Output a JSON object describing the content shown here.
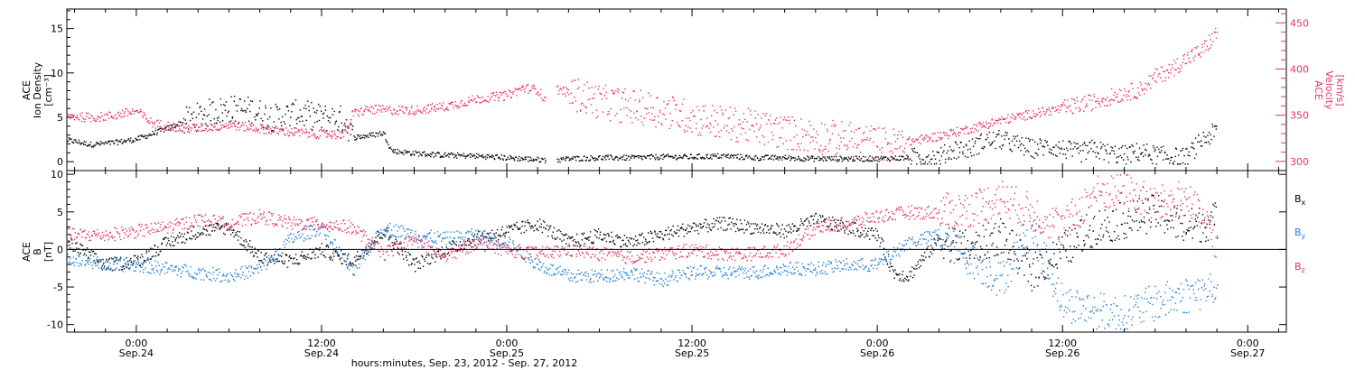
{
  "colors": {
    "black": "#000000",
    "pink": "#e8335e",
    "blue": "#1f7fd6",
    "axis": "#000000"
  },
  "x_axis": {
    "title": "hours:minutes, Sep. 23, 2012 - Sep. 27, 2012",
    "range_hours": [
      -4.5,
      74.5
    ],
    "ticks": [
      {
        "hour": 0,
        "time": "0:00",
        "date": "Sep.24"
      },
      {
        "hour": 12,
        "time": "12:00",
        "date": "Sep.24"
      },
      {
        "hour": 24,
        "time": "0:00",
        "date": "Sep.25"
      },
      {
        "hour": 36,
        "time": "12:00",
        "date": "Sep.25"
      },
      {
        "hour": 48,
        "time": "0:00",
        "date": "Sep.26"
      },
      {
        "hour": 60,
        "time": "12:00",
        "date": "Sep.26"
      },
      {
        "hour": 72,
        "time": "0:00",
        "date": "Sep.27"
      }
    ]
  },
  "chart_data": [
    {
      "type": "scatter",
      "panel": "top",
      "left_ylabel": [
        "ACE",
        "Ion Density",
        "[cm⁻³]"
      ],
      "right_ylabel": [
        "ACE",
        "Velocity",
        "[km/s]"
      ],
      "left_ylim": [
        -1,
        17.2
      ],
      "right_ylim": [
        290,
        465
      ],
      "left_yticks": [
        0,
        5,
        10,
        15
      ],
      "right_yticks": [
        300,
        350,
        400,
        450
      ],
      "series": [
        {
          "name": "Ion Density",
          "axis": "left",
          "color": "#000000",
          "x": [
            -4.5,
            -3,
            -1.5,
            0,
            1.5,
            3,
            4.5,
            6,
            7.5,
            9,
            10.5,
            12,
            13.5,
            14,
            15,
            16,
            16.5,
            18,
            20,
            22,
            24,
            26,
            27,
            28,
            30,
            32,
            34,
            36,
            38,
            40,
            42,
            44,
            46,
            48,
            50,
            52,
            53,
            54,
            55,
            56,
            57,
            58,
            59,
            60,
            61,
            62,
            63,
            64,
            65,
            66,
            67,
            68,
            69,
            70
          ],
          "y": [
            2.5,
            2,
            2.2,
            2.6,
            3.5,
            4.5,
            5.5,
            6,
            5.8,
            5,
            5.5,
            5,
            4.8,
            2.8,
            3,
            3.3,
            1.3,
            1,
            0.8,
            0.7,
            0.5,
            0.3,
            0.2,
            0.4,
            0.5,
            0.5,
            0.6,
            0.6,
            0.7,
            0.5,
            0.5,
            0.4,
            0.4,
            0.4,
            0.5,
            0.6,
            1.5,
            1.5,
            2.5,
            2.5,
            2,
            1.5,
            1.8,
            1.5,
            1,
            1.5,
            1,
            0.8,
            1.2,
            0.8,
            0.6,
            0.5,
            2.5,
            3.5
          ]
        },
        {
          "name": "Velocity",
          "axis": "right",
          "color": "#e8335e",
          "x": [
            -4.5,
            -3,
            -1.5,
            -1,
            0,
            1,
            3,
            5,
            6,
            8,
            10,
            12,
            13.5,
            14,
            15,
            16,
            18,
            20,
            22,
            24,
            25,
            26,
            26.5,
            27,
            28,
            30,
            32,
            34,
            36,
            38,
            40,
            42,
            44,
            46,
            48,
            49,
            50,
            52,
            54,
            56,
            58,
            60,
            62,
            64,
            65,
            66,
            67,
            68,
            69,
            70
          ],
          "y": [
            350,
            348,
            350,
            352,
            355,
            342,
            336,
            338,
            340,
            336,
            332,
            330,
            330,
            352,
            357,
            356,
            356,
            360,
            368,
            372,
            380,
            378,
            365,
            380,
            375,
            365,
            360,
            356,
            348,
            342,
            338,
            332,
            328,
            325,
            320,
            318,
            322,
            328,
            336,
            345,
            352,
            358,
            365,
            375,
            378,
            392,
            400,
            412,
            420,
            440
          ]
        }
      ]
    },
    {
      "type": "scatter",
      "panel": "bottom",
      "left_ylabel": [
        "ACE",
        "B",
        "[nT]"
      ],
      "ylim": [
        -11,
        10.5
      ],
      "yticks": [
        -10,
        -5,
        0,
        5,
        10
      ],
      "zero_line": true,
      "series": [
        {
          "name": "Bx",
          "label_main": "B",
          "label_sub": "x",
          "color": "#000000",
          "x": [
            -4.5,
            -2,
            0,
            2,
            4,
            6,
            8,
            10,
            12,
            14,
            16,
            18,
            20,
            22,
            24,
            26,
            28,
            30,
            32,
            34,
            36,
            38,
            40,
            42,
            44,
            46,
            48,
            49,
            50,
            52,
            54,
            56,
            58,
            60,
            62,
            64,
            66,
            68,
            70
          ],
          "y": [
            1,
            -2,
            -1.5,
            1,
            2.5,
            3,
            -1,
            -1.5,
            0,
            -1.5,
            2.5,
            -2,
            0,
            1.5,
            2.5,
            3.5,
            1,
            2,
            1,
            2,
            3,
            3.5,
            3,
            2.5,
            4,
            3,
            2,
            -3,
            -3.5,
            1.5,
            0,
            2,
            -3,
            0,
            3,
            4,
            5,
            3,
            4
          ]
        },
        {
          "name": "By",
          "label_main": "B",
          "label_sub": "y",
          "color": "#1f7fd6",
          "x": [
            -4.5,
            -2,
            0,
            2,
            4,
            6,
            8,
            10,
            12,
            14,
            16,
            18,
            20,
            22,
            24,
            26,
            28,
            30,
            32,
            34,
            36,
            38,
            40,
            42,
            44,
            46,
            48,
            50,
            52,
            54,
            56,
            58,
            60,
            62,
            64,
            66,
            68,
            70
          ],
          "y": [
            -1,
            -2,
            -2,
            -2.5,
            -3,
            -3.5,
            -2.5,
            1.5,
            3,
            -3,
            3,
            2,
            1.5,
            2,
            1,
            -2,
            -3.5,
            -3.5,
            -3,
            -4,
            -3,
            -3,
            -3,
            -2.5,
            -2.5,
            -2,
            -2,
            1,
            2,
            -1,
            -4,
            3,
            -7,
            -8,
            -8.5,
            -7,
            -6,
            -5
          ]
        },
        {
          "name": "Bz",
          "label_main": "B",
          "label_sub": "z",
          "color": "#e8335e",
          "x": [
            -4.5,
            -2,
            0,
            2,
            4,
            6,
            8,
            10,
            12,
            14,
            16,
            18,
            20,
            22,
            24,
            26,
            28,
            30,
            32,
            34,
            36,
            38,
            40,
            42,
            44,
            46,
            48,
            50,
            52,
            54,
            56,
            58,
            60,
            62,
            64,
            66,
            68,
            70
          ],
          "y": [
            2,
            2,
            2.5,
            3,
            4,
            3.5,
            4.5,
            3.5,
            3.5,
            3,
            -0.5,
            1.5,
            -1,
            1,
            0,
            -0.5,
            0,
            -0.5,
            -1,
            -0.5,
            0,
            -0.5,
            -0.5,
            0,
            3,
            3.5,
            4.5,
            5,
            5,
            5.5,
            7,
            5,
            3,
            7.5,
            8,
            6,
            7,
            1
          ]
        }
      ]
    }
  ]
}
